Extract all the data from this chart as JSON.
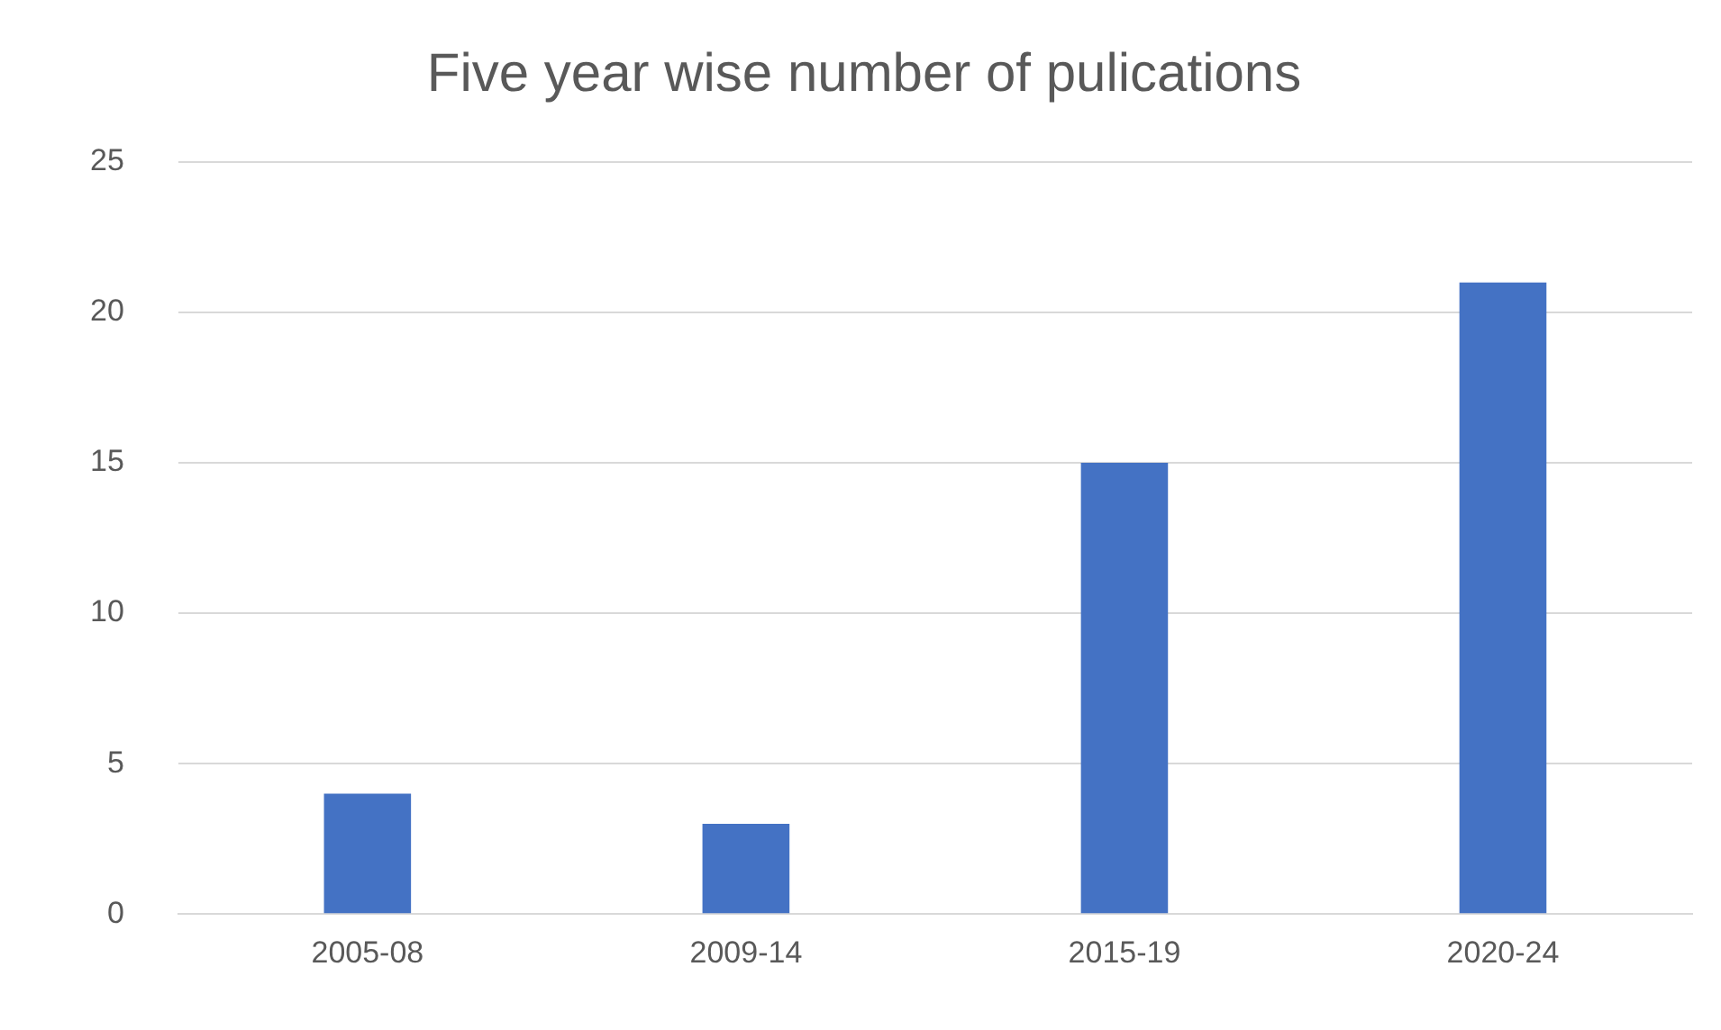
{
  "chart_data": {
    "type": "bar",
    "title": "Five year wise number of pulications",
    "categories": [
      "2005-08",
      "2009-14",
      "2015-19",
      "2020-24"
    ],
    "values": [
      4,
      3,
      15,
      21
    ],
    "color": "#4472c4",
    "ylim": [
      0,
      25
    ],
    "yticks": [
      0,
      5,
      10,
      15,
      20,
      25
    ],
    "grid": "y",
    "legend": false
  }
}
